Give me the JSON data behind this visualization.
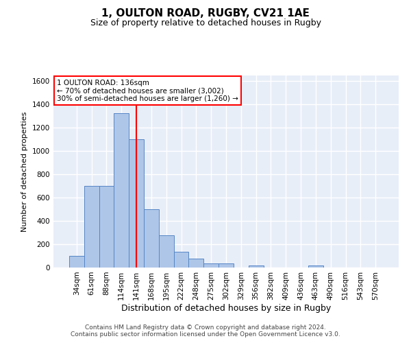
{
  "title": "1, OULTON ROAD, RUGBY, CV21 1AE",
  "subtitle": "Size of property relative to detached houses in Rugby",
  "xlabel": "Distribution of detached houses by size in Rugby",
  "ylabel": "Number of detached properties",
  "categories": [
    "34sqm",
    "61sqm",
    "88sqm",
    "114sqm",
    "141sqm",
    "168sqm",
    "195sqm",
    "222sqm",
    "248sqm",
    "275sqm",
    "302sqm",
    "329sqm",
    "356sqm",
    "382sqm",
    "409sqm",
    "436sqm",
    "463sqm",
    "490sqm",
    "516sqm",
    "543sqm",
    "570sqm"
  ],
  "values": [
    100,
    700,
    700,
    1325,
    1100,
    500,
    275,
    135,
    75,
    35,
    35,
    0,
    15,
    0,
    0,
    0,
    15,
    0,
    0,
    0,
    0
  ],
  "bar_color": "#aec6e8",
  "bar_edge_color": "#5585c5",
  "vline_x": 4,
  "vline_color": "red",
  "ylim": [
    0,
    1650
  ],
  "yticks": [
    0,
    200,
    400,
    600,
    800,
    1000,
    1200,
    1400,
    1600
  ],
  "annotation_text": "1 OULTON ROAD: 136sqm\n← 70% of detached houses are smaller (3,002)\n30% of semi-detached houses are larger (1,260) →",
  "annotation_box_color": "red",
  "annotation_box_fill": "white",
  "footer": "Contains HM Land Registry data © Crown copyright and database right 2024.\nContains public sector information licensed under the Open Government Licence v3.0.",
  "background_color": "#e8eef8",
  "grid_color": "white",
  "title_fontsize": 11,
  "subtitle_fontsize": 9,
  "xlabel_fontsize": 9,
  "ylabel_fontsize": 8,
  "tick_fontsize": 7.5
}
